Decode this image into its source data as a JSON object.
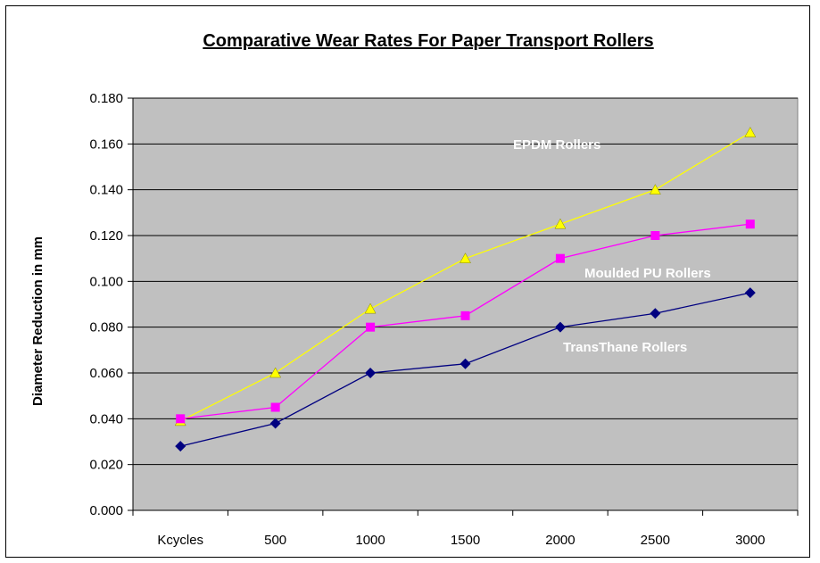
{
  "chart_data": {
    "type": "line",
    "title": "Comparative Wear Rates For Paper Transport Rollers",
    "xlabel": "",
    "ylabel": "Diameter Reduction in mm",
    "categories": [
      "Kcycles",
      "500",
      "1000",
      "1500",
      "2000",
      "2500",
      "3000"
    ],
    "y_ticks": [
      "0.000",
      "0.020",
      "0.040",
      "0.060",
      "0.080",
      "0.100",
      "0.120",
      "0.140",
      "0.160",
      "0.180"
    ],
    "ylim": [
      0,
      0.18
    ],
    "grid": true,
    "plot_background": "#c0c0c0",
    "series": [
      {
        "name": "EPDM Rollers",
        "color": "#ffff00",
        "marker": "triangle",
        "values": [
          0.039,
          0.06,
          0.088,
          0.11,
          0.125,
          0.14,
          0.165
        ]
      },
      {
        "name": "Moulded PU Rollers",
        "color": "#ff00ff",
        "marker": "square",
        "values": [
          0.04,
          0.045,
          0.08,
          0.085,
          0.11,
          0.12,
          0.125
        ]
      },
      {
        "name": "TransThane Rollers",
        "color": "#000080",
        "marker": "diamond",
        "values": [
          0.028,
          0.038,
          0.06,
          0.064,
          0.08,
          0.086,
          0.095
        ]
      }
    ]
  }
}
